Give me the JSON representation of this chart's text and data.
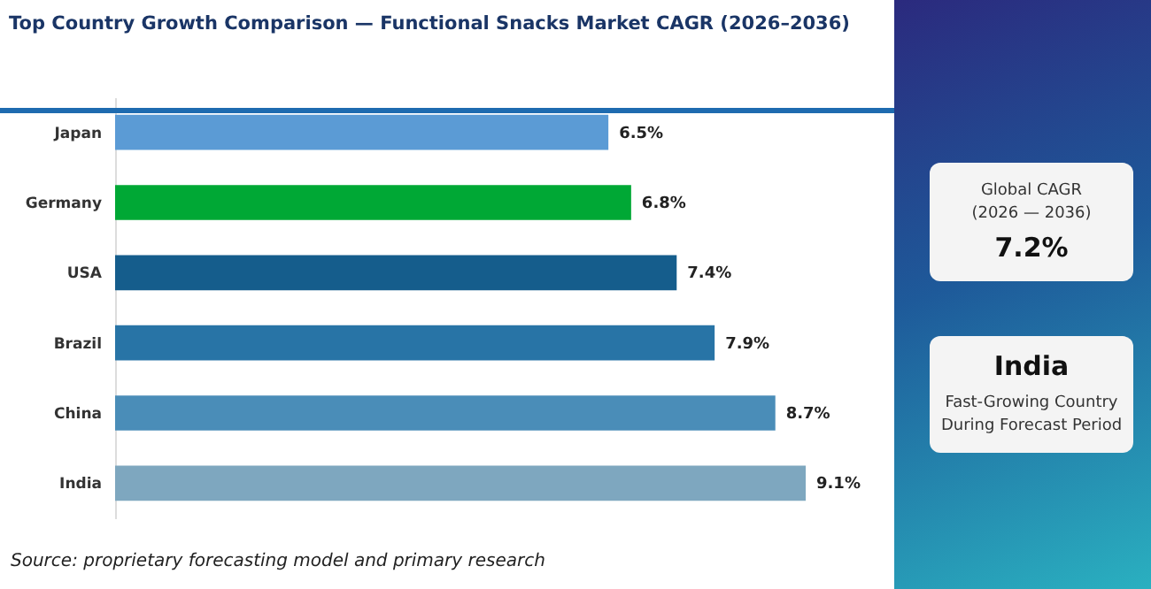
{
  "chart_data": [
    {
      "type": "bar",
      "title": "Top Country Growth Comparison — Functional Snacks Market CAGR (2026–2036)",
      "orientation": "horizontal",
      "categories": [
        "Japan",
        "Germany",
        "USA",
        "Brazil",
        "China",
        "India"
      ],
      "values": [
        6.5,
        6.8,
        7.4,
        7.9,
        8.7,
        9.1
      ],
      "colors": [
        "#5b9bd5",
        "#00a835",
        "#155d8c",
        "#2874a6",
        "#4a8db8",
        "#7ea7bf"
      ],
      "value_labels": [
        "6.5%",
        "6.8%",
        "7.4%",
        "7.9%",
        "8.7%",
        "9.1%"
      ],
      "tick_labels": "y",
      "annotations": [
        "Source: proprietary forecasting model and primary research"
      ]
    },
    {
      "type": "other",
      "annotations": [
        "Global CAGR",
        "(2026 — 2036)",
        "7.2%",
        "India",
        "Fast-Growing Country",
        "During Forecast Period"
      ]
    }
  ]
}
